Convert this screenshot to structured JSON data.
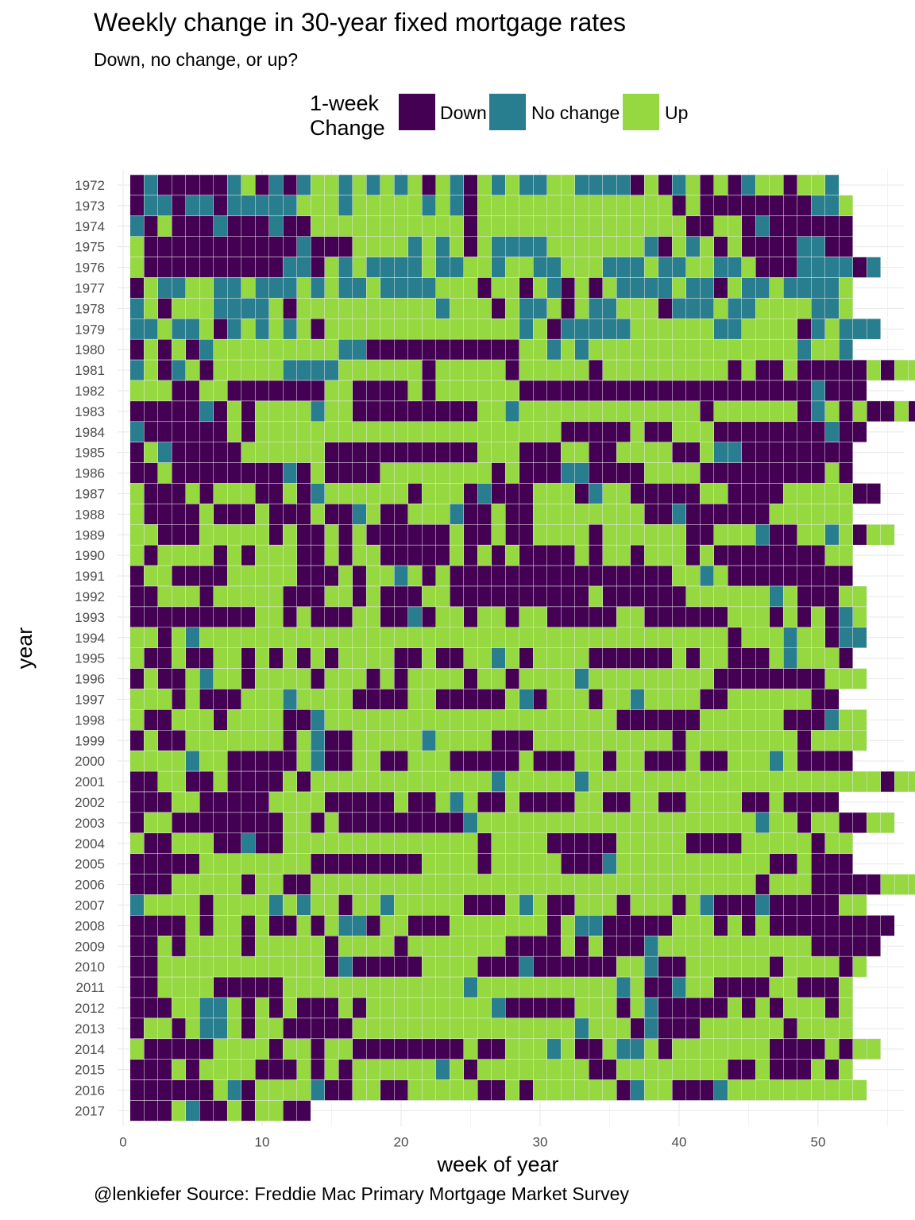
{
  "chart_data": {
    "type": "heatmap",
    "title": "Weekly change in 30-year fixed mortgage rates",
    "subtitle": "Down, no change, or up?",
    "caption": "@lenkiefer Source: Freddie Mac Primary Mortgage Market Survey",
    "xlabel": "week of year",
    "ylabel": "year",
    "x_ticks": [
      0,
      10,
      20,
      30,
      40,
      50
    ],
    "xlim": [
      0,
      55
    ],
    "legend": {
      "title": "1-week\nChange",
      "placement": "top",
      "items": [
        {
          "key": "D",
          "label": "Down",
          "color": "#440154"
        },
        {
          "key": "N",
          "label": "No change",
          "color": "#287D8E"
        },
        {
          "key": "U",
          "label": "Up",
          "color": "#95D840"
        }
      ]
    },
    "grid": true,
    "cell_border_color": "#ebebeb",
    "encoding": "Each row string lists weeks starting at week 1; D = Down, N = No change, U = Up",
    "rows": [
      {
        "year": 1972,
        "weeks": "DNDDDDDNUDNDNUUNUNUNUDUNDUNUNNUUNNNNDUDNUDUDNUUDUUN"
      },
      {
        "year": 1973,
        "weeks": "DNNDNNDNNNNNUUUNUUUUUNUNDUUUUUUUUUUUUUUDUDDDDDDDDNNU"
      },
      {
        "year": 1974,
        "weeks": "NDUDDDNDDDNDDUUUUUUUUUUUDUUUUUUUUUUUUUUUDDUUDNDDDDDD"
      },
      {
        "year": 1975,
        "weeks": "UDDDDDDDDDDDNDDDUUUUNUNUDUNNNNUUUUUUUNDUNUDUDDDDNNDD"
      },
      {
        "year": 1976,
        "weeks": "UDDDDDDDDDDNNDUNUNNNNUNNUUNUUNNUUUNNNUNNUUNNUDDDNNNNDN"
      },
      {
        "year": 1977,
        "weeks": "DUNNUUNNUNNNUNUNNUNNNNUUUDUUDUNDUDUNNNNUNNDUNNUNNNNU"
      },
      {
        "year": 1978,
        "weeks": "NUDUUUNNNNUDUUUUUUUUUUNUUUDUNNUDUNNUUUDNNNUNNUUUUNNU"
      },
      {
        "year": 1979,
        "weeks": "NNUNNUDNUNUNUDUUUUUUUUUUUUUUNUDNNNNNUUUUUUNNUUUUDNUNNN"
      },
      {
        "year": 1980,
        "weeks": "DUDUDNUUUUUUUUUNNDDDDDDDDDDDUUNUNUUUUUUUUUUUUUUUNUUN"
      },
      {
        "year": 1981,
        "weeks": "NUDNUDUUUUUNNNNUUUUUUDUUUUUDUUUUUDUUUUUUUUUDUDDUDDDDDUDUU"
      },
      {
        "year": 1982,
        "weeks": "UUUDDUUDDDDDDDUUDDDDUDUUUUUUDDDDDDDDDDDDDDDDDDDDDNDDD"
      },
      {
        "year": 1983,
        "weeks": "DDDDDNDUDUUUUNUUDDDDDDDDDUUNUUUUUUUUUUUUUDUUUUUUDNUDUDDUDUUUD"
      },
      {
        "year": 1984,
        "weeks": "NDDDDDDUDUUUUUUUUUUUUUUUUUUUUUUDDDDDUDDUUUDDDDDDDDNDD"
      },
      {
        "year": 1985,
        "weeks": "DUNDDDDDUUUUUUDDDDDDDDDDDUUUDDDUUDDUUUUDDUNNDDDDDDDD"
      },
      {
        "year": 1986,
        "weeks": "DDUDDDDDDDDNDUDDDDUUUUUUUUDUDDDNNDDDDUUUUDDDDDDDDDUD"
      },
      {
        "year": 1987,
        "weeks": "UDDDUDUUUDDUDNUUUUUUDUUUDNDDDUUUDNUUDDDDDUUDDDDUUUUUDD"
      },
      {
        "year": 1988,
        "weeks": "UDDDDUDDDUDDDUDDNUDDUUUNDDUDDUUUUUUUUDDNDDDDDDUUUUUU"
      },
      {
        "year": 1989,
        "weeks": "UUDDDUUUUUDUDDUDUDDDDDDUDDUDDUUUUDUUUUUUDDUUUNDDUUNUDUU"
      },
      {
        "year": 1990,
        "weeks": "UDUUUUDUDUUUDDUDUUDDDDDUDUDUDDDDUDUUDUUUDUDDDDDDDDUU"
      },
      {
        "year": 1991,
        "weeks": "DUUDDDDUUUUUDDDUDUUNUDUDDDDDDDDDDDDDDDDUUNUDDDDDDDDD"
      },
      {
        "year": 1992,
        "weeks": "DDUUUDUUUUUDDDUUDUDDDUUDDDDDDDDDDUDDDDDDUUUUUUNUDDDUU"
      },
      {
        "year": 1993,
        "weeks": "DDDDDDDDDUUDUDDDUUDDNDUUDUUDUUDDDDDUUDDDDDDUUUDUDUDNU"
      },
      {
        "year": 1994,
        "weeks": "UUDUNUUUUUUUUUUUUUUUUUUUUUUUUUUUUUUUUUUUUUUDUUUNUUDNN"
      },
      {
        "year": 1995,
        "weeks": "UDDUDDUUDUDUDUDUUUUDDUDDUUNUDUUUUDDDDDDUDUUDDDUNUUUD"
      },
      {
        "year": 1996,
        "weeks": "DUDDUNUUDUUUUDUUUDUDUUUUDUUDUUUUNUUUUUUUUUDDDDDDDDUUU"
      },
      {
        "year": 1997,
        "weeks": "UUUDUDDDUUUNUUUUDDDDUUDDDDDUNDUUUDUUNUUUUDDUUUUUUDD"
      },
      {
        "year": 1998,
        "weeks": "UDDUUUDUUUUDDNUUUUUUUUUUUUUUUUUUUUUDDDDDDUUUUUUDDDNUU"
      },
      {
        "year": 1999,
        "weeks": "DUDDUUUUUUUDUNDDUUUUUNUUUUDDDUUUUUUUUUUDUUUUUUUUDUUUU"
      },
      {
        "year": 2000,
        "weeks": "UUUUNUUDDDDDUNDDUUDDUUUDDDDDUDDDUUDUUDDDUDDUUUNUDDDD"
      },
      {
        "year": 2001,
        "weeks": "DDUUDDUDDDDUDUUUUUUUUUUUUUNUUUUUNUUUUUUUUUUUUUUUUUUUUUDUUD"
      },
      {
        "year": 2002,
        "weeks": "DDDUUDDDDDUUUUDDDDDUDDUNUDDUDDDDUUDDUUDDUUUUDDUDDDD"
      },
      {
        "year": 2003,
        "weeks": "DUUDDDDDDDDUUDUDDDDDDDDDNUUUUUUUUUUUUUUUUUUUUNUUDUUDDUU"
      },
      {
        "year": 2004,
        "weeks": "UDDUUUDDNDDUUUUUUUUUUUUUUDUUUUDDDDDUUUUUDDDDUUUUUDUU"
      },
      {
        "year": 2005,
        "weeks": "DDDDDUUUUUUUUDDDDDDDDUUUUDUUUUUDDDNUUUUUUUUUUUDDUDDD"
      },
      {
        "year": 2006,
        "weeks": "DDDUUUUUDUUDDUUUUUUUUUUUUUUUUUUUUUUUUUUUUUUUUDUUUDDDDDUUUUU"
      },
      {
        "year": 2007,
        "weeks": "NUUUUDUUUUNUNUUDUUNUUUUUDDDUNUDDUUUDUUUDUNDDDNDDDDDUU"
      },
      {
        "year": 2008,
        "weeks": "DDDDUDUUDUDDUDUNNDUUDDDUUUUUUUDUNNDDDDDUUUDUDUDDDDDDDDD"
      },
      {
        "year": 2009,
        "weeks": "DDUDUUUUDUUUUUDUUUUDUUUUUUUDDDDUDUDDDNUUUUUUUUUUUDDDDD"
      },
      {
        "year": 2010,
        "weeks": "DDUUUUUUUUUUUUDNDDDDDUUUUDDDNDDDDDDUUNDDUUUUUUDUUUUDU"
      },
      {
        "year": 2011,
        "weeks": "DDUUUUDDDDDUUUUUUUUUUUUUNUUUUUUUUUUNUDDNUUDDDDUUDDDU"
      },
      {
        "year": 2012,
        "weeks": "DDDUUNNUDUDUDDDUDUUUUUUUUUNDDDDDUUUDUNDDDDDUDUDUUUDU"
      },
      {
        "year": 2013,
        "weeks": "DUUDUNNUDUUDDDDDUUUUUUUUUUUUUUUUNUUUDNDDDUUUUUUDUUUU"
      },
      {
        "year": 2014,
        "weeks": "UDDDDDUUUUDUUDUUDDDDDDDDUDDUUUNUDDUNNUDUUUUUUUDDDDUDUU"
      },
      {
        "year": 2015,
        "weeks": "DDDUDUUUUDDDUDUDUUUUUUNUDUUUUUUUUDDUUUUUUUUDDUDDDUDU"
      },
      {
        "year": 2016,
        "weeks": "DDDDDDUNDUUUUNDDUUDDUUUUUDDUDUUUUUUDNUUDDDNUUUUUUUUUU"
      },
      {
        "year": 2017,
        "weeks": "DDDUNDDUDUUDD"
      }
    ]
  }
}
